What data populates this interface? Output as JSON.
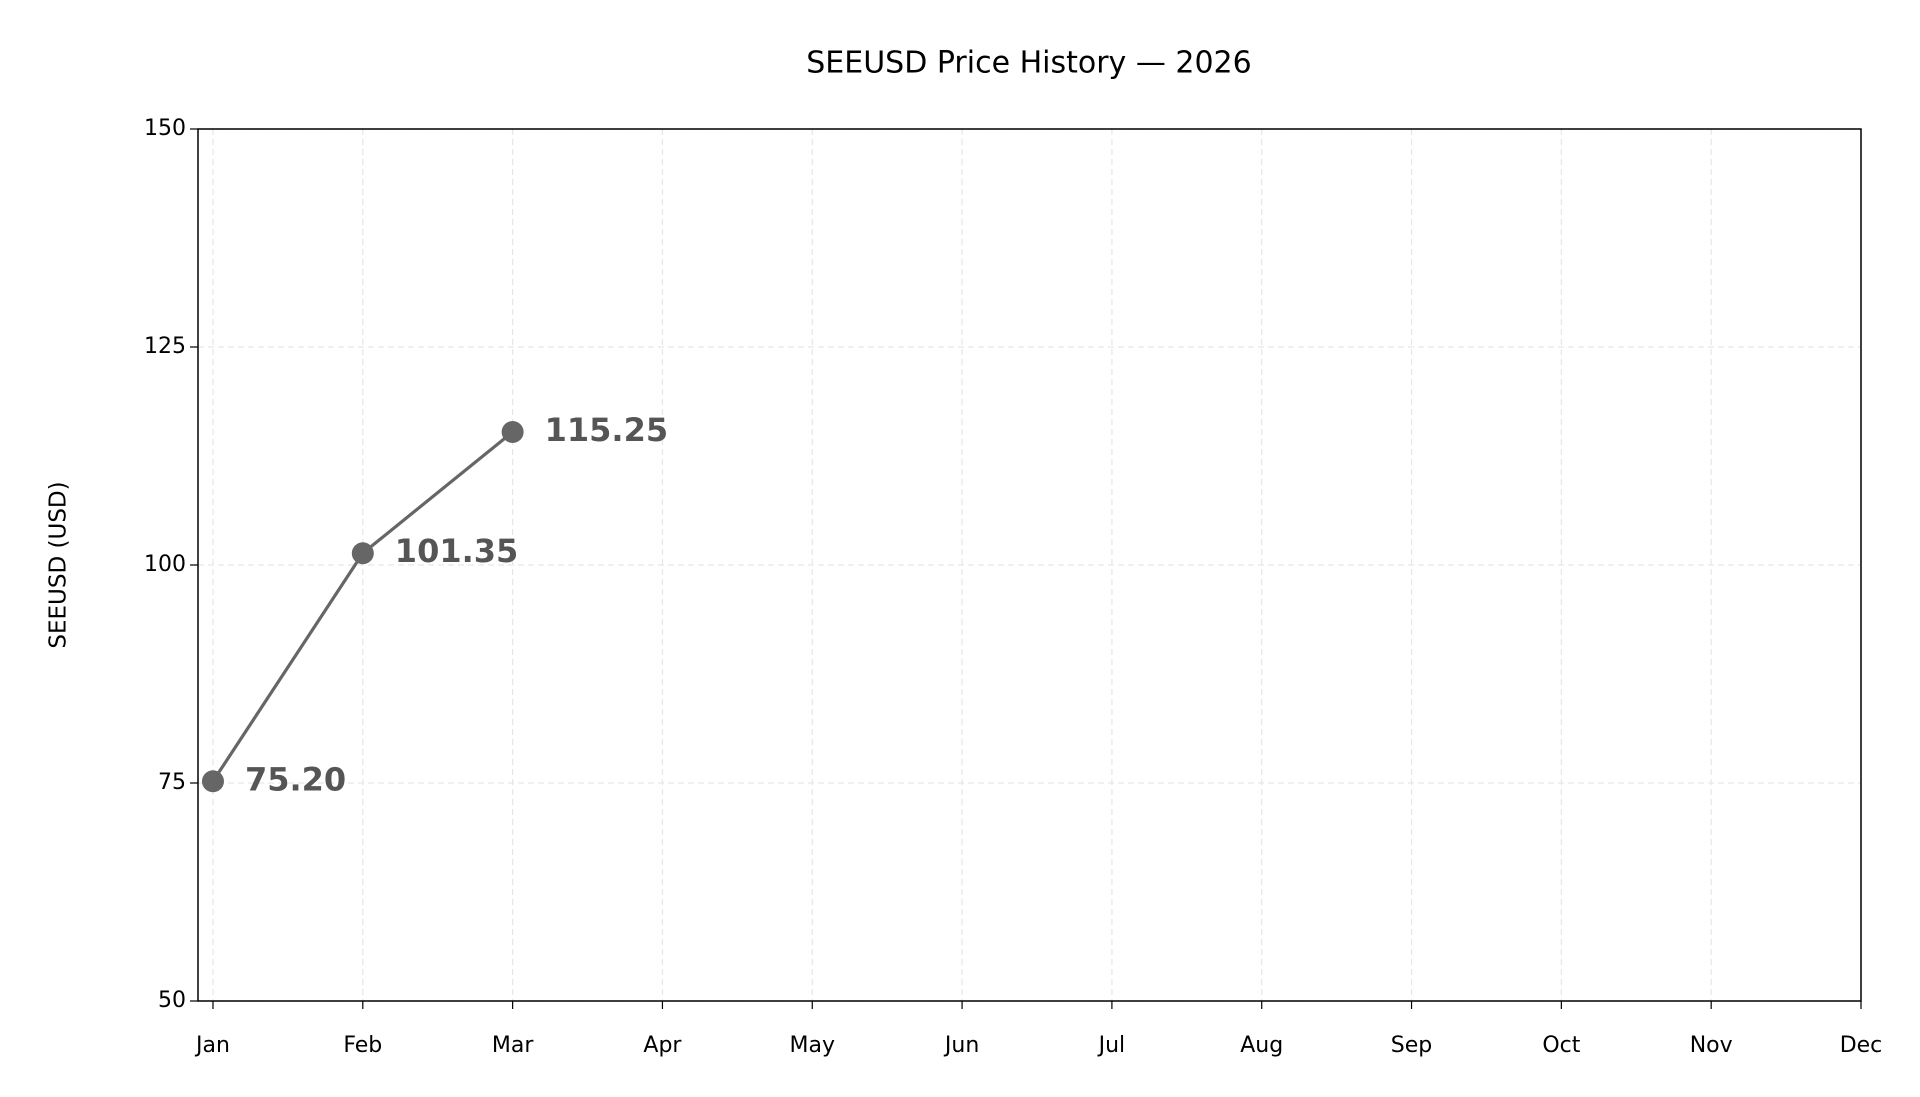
{
  "chart_data": {
    "type": "line",
    "title": "SEEUSD Price History — 2026",
    "y_label": "SEEUSD (USD)",
    "categories": [
      "Jan",
      "Feb",
      "Mar",
      "Apr",
      "May",
      "Jun",
      "Jul",
      "Aug",
      "Sep",
      "Oct",
      "Nov",
      "Dec"
    ],
    "series": [
      {
        "name": "SEEUSD",
        "color": "#666666",
        "values": [
          75.2,
          101.35,
          115.25,
          null,
          null,
          null,
          null,
          null,
          null,
          null,
          null,
          null
        ],
        "value_labels": [
          "75.20",
          "101.35",
          "115.25",
          null,
          null,
          null,
          null,
          null,
          null,
          null,
          null,
          null
        ]
      }
    ],
    "ylim": [
      50,
      150
    ],
    "yticks": [
      50,
      75,
      100,
      125,
      150
    ],
    "grid": true
  }
}
